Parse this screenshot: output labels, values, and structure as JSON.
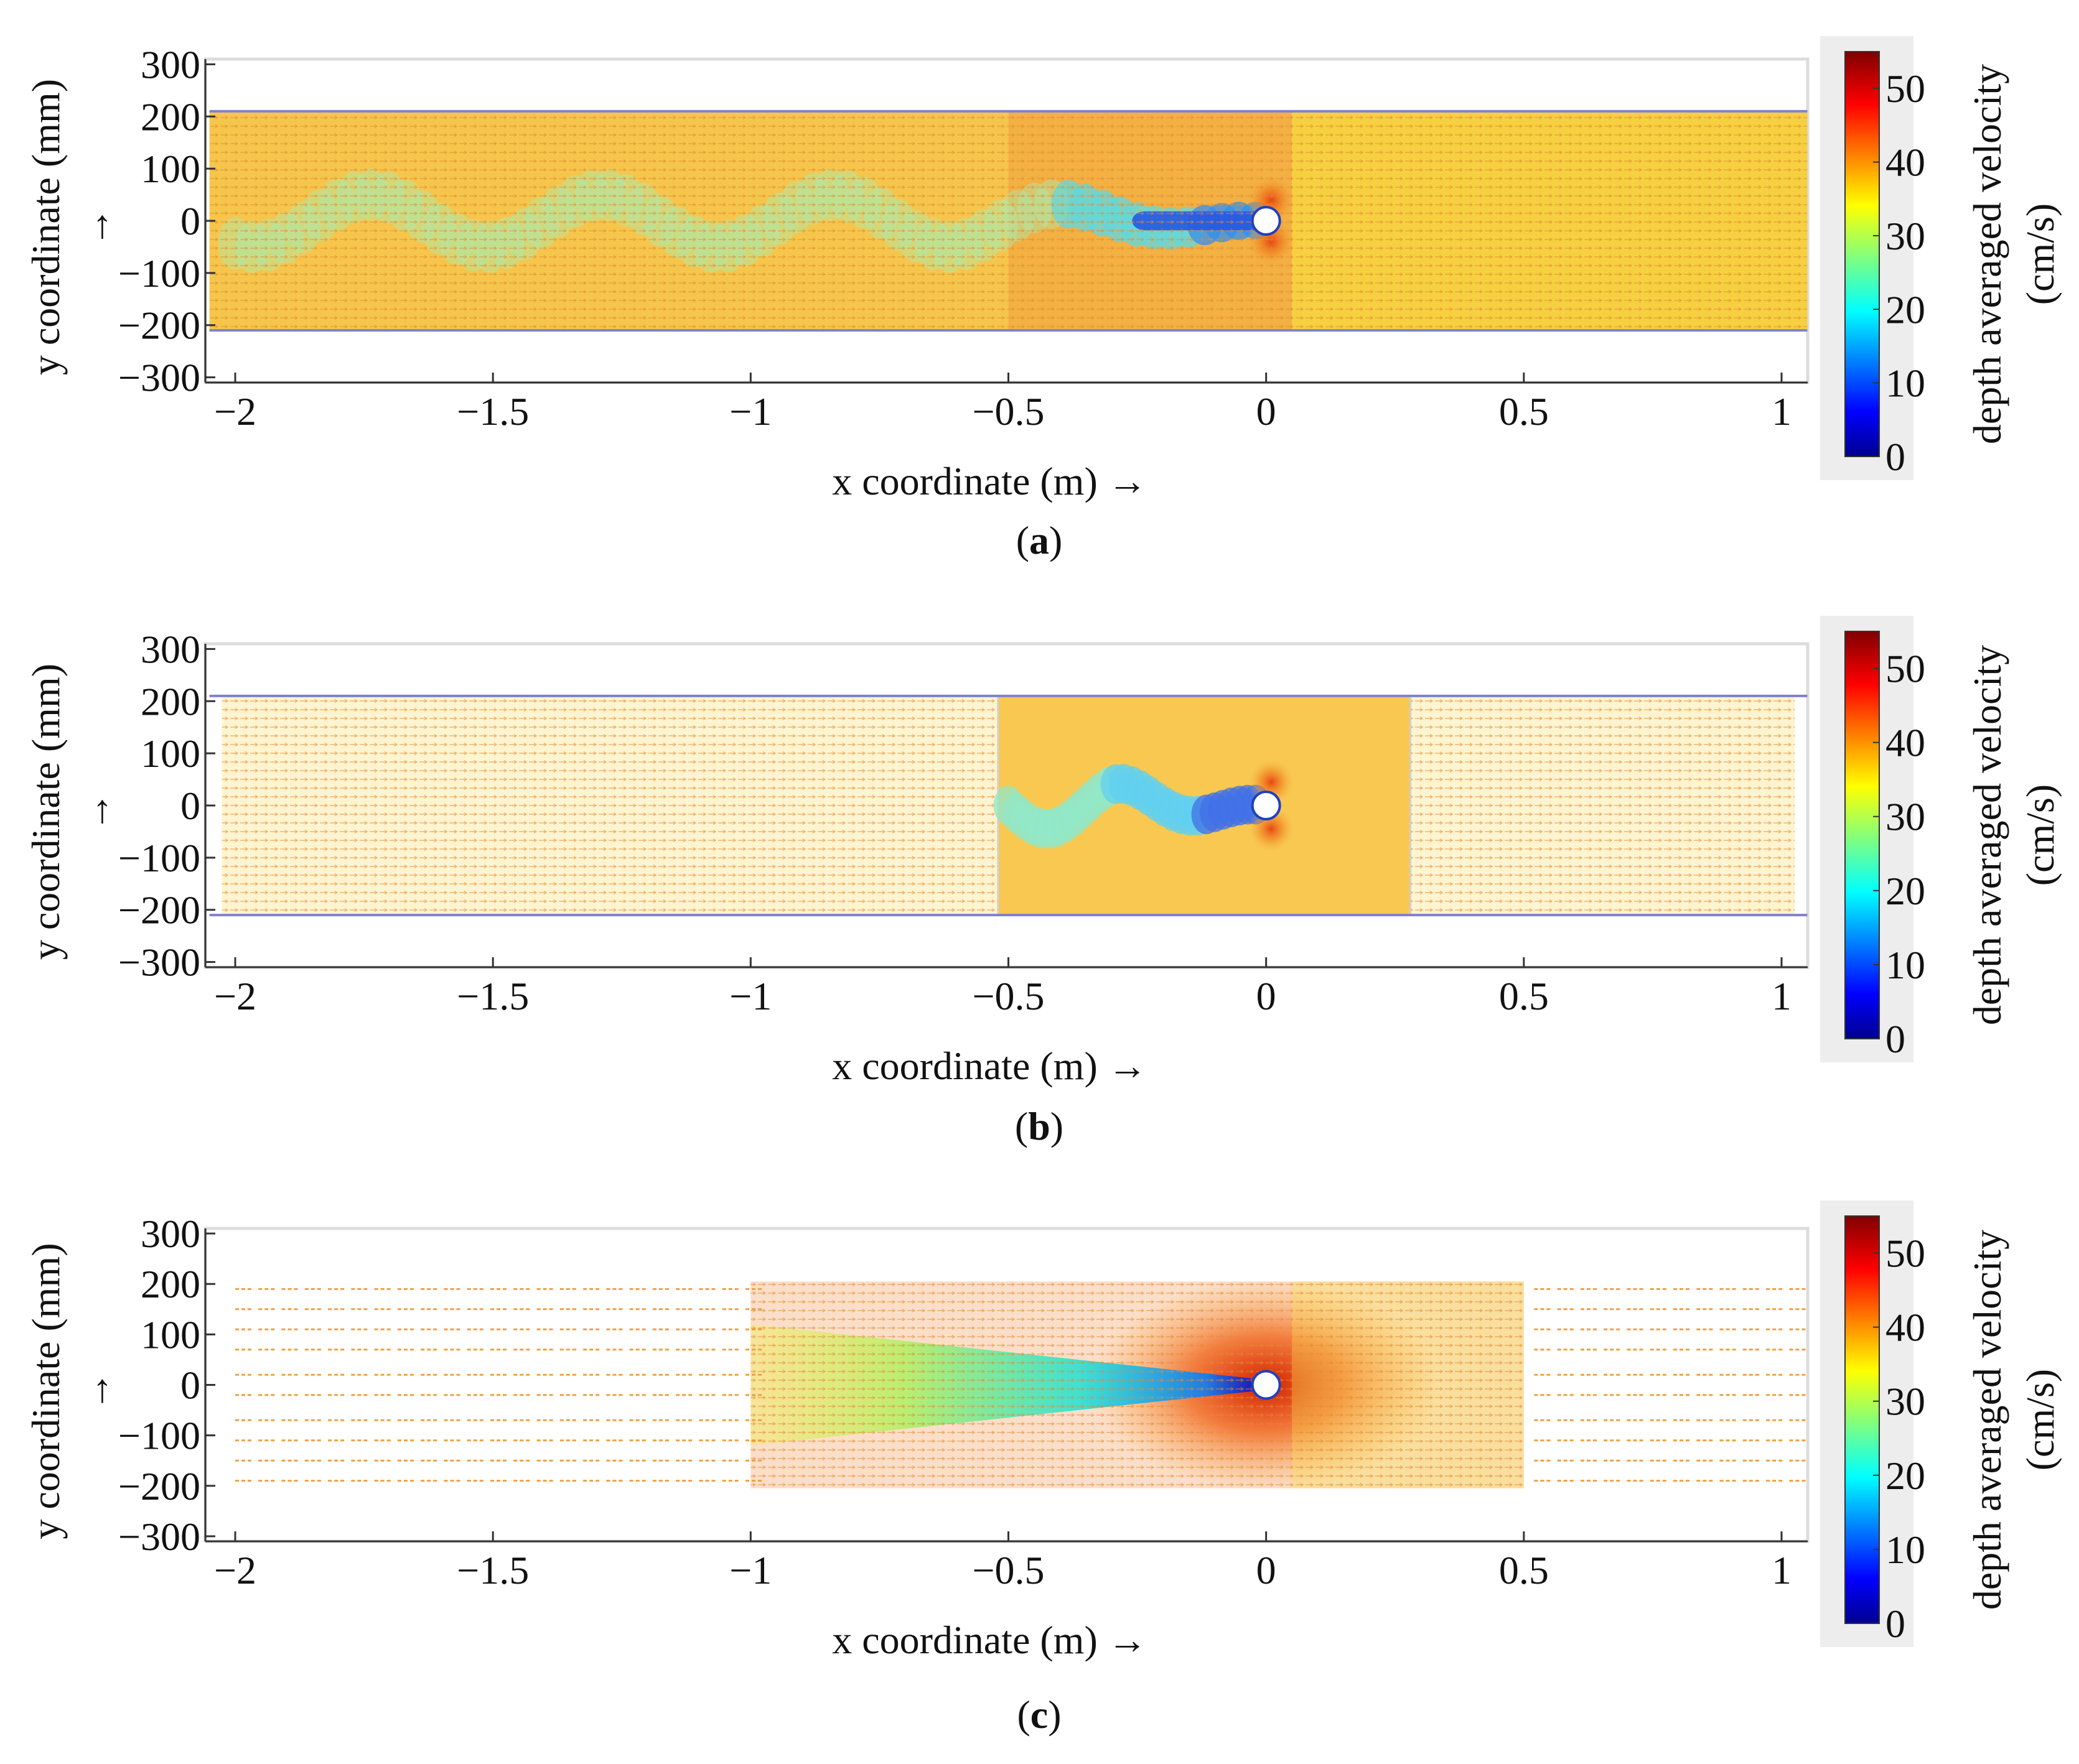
{
  "figure": {
    "panels": [
      {
        "id": "a",
        "label_open": "(",
        "label_letter": "a",
        "label_close": ")",
        "xlabel": "x coordinate  (m) →",
        "ylabel": "y coordinate  (mm)",
        "yarrow": "→",
        "colorbar_label_line1": "depth averaged  velocity",
        "colorbar_label_line2": "(cm/s)"
      },
      {
        "id": "b",
        "label_open": "(",
        "label_letter": "b",
        "label_close": ")",
        "xlabel": "x coordinate  (m) →",
        "ylabel": "y coordinate  (mm)",
        "yarrow": "→",
        "colorbar_label_line1": "depth averaged  velocity",
        "colorbar_label_line2": "(cm/s)"
      },
      {
        "id": "c",
        "label_open": "(",
        "label_letter": "c",
        "label_close": ")",
        "xlabel": "x coordinate  (m) →",
        "ylabel": "y coordinate  (mm)",
        "yarrow": "→",
        "colorbar_label_line1": "depth averaged  velocity",
        "colorbar_label_line2": "(cm/s)"
      }
    ]
  },
  "chart_data": [
    {
      "type": "heatmap",
      "panel": "a",
      "description_kind": "depth averaged velocity field around a cylinder (vector plot with colormap)",
      "xlim": [
        -2.05,
        1.05
      ],
      "ylim": [
        -310,
        310
      ],
      "xticks": [
        -2,
        -1.5,
        -1,
        -0.5,
        0,
        0.5,
        1
      ],
      "xtick_labels": [
        "−2",
        "−1.5",
        "−1",
        "−0.5",
        "0",
        "0.5",
        "1"
      ],
      "yticks": [
        300,
        200,
        100,
        0,
        -100,
        -200,
        -300
      ],
      "ytick_labels": [
        "300",
        "200",
        "100",
        "0",
        "−100",
        "−200",
        "−300"
      ],
      "channel_walls_y": [
        -210,
        210
      ],
      "cylinder": {
        "x": 0,
        "y": 0
      },
      "colorbar": {
        "min": 0,
        "max": 55,
        "colormap": "jet",
        "ticks": [
          0,
          10,
          20,
          30,
          40,
          50
        ],
        "tick_labels": [
          "0",
          "10",
          "20",
          "30",
          "40",
          "50"
        ]
      },
      "grid": false
    },
    {
      "type": "heatmap",
      "panel": "b",
      "description_kind": "depth averaged velocity field around a cylinder (vector plot with colormap)",
      "xlim": [
        -2.05,
        1.05
      ],
      "ylim": [
        -310,
        310
      ],
      "xticks": [
        -2,
        -1.5,
        -1,
        -0.5,
        0,
        0.5,
        1
      ],
      "xtick_labels": [
        "−2",
        "−1.5",
        "−1",
        "−0.5",
        "0",
        "0.5",
        "1"
      ],
      "yticks": [
        300,
        200,
        100,
        0,
        -100,
        -200,
        -300
      ],
      "ytick_labels": [
        "300",
        "200",
        "100",
        "0",
        "−100",
        "−200",
        "−300"
      ],
      "channel_walls_y": [
        -210,
        210
      ],
      "refined_region_x": [
        -0.52,
        0.28
      ],
      "cylinder": {
        "x": 0,
        "y": 0
      },
      "colorbar": {
        "min": 0,
        "max": 55,
        "colormap": "jet",
        "ticks": [
          0,
          10,
          20,
          30,
          40,
          50
        ],
        "tick_labels": [
          "0",
          "10",
          "20",
          "30",
          "40",
          "50"
        ]
      },
      "grid": false
    },
    {
      "type": "heatmap",
      "panel": "c",
      "description_kind": "depth averaged velocity field around a cylinder (vector plot with colormap)",
      "xlim": [
        -2.05,
        1.05
      ],
      "ylim": [
        -310,
        310
      ],
      "xticks": [
        -2,
        -1.5,
        -1,
        -0.5,
        0,
        0.5,
        1
      ],
      "xtick_labels": [
        "−2",
        "−1.5",
        "−1",
        "−0.5",
        "0",
        "0.5",
        "1"
      ],
      "yticks": [
        300,
        200,
        100,
        0,
        -100,
        -200,
        -300
      ],
      "ytick_labels": [
        "300",
        "200",
        "100",
        "0",
        "−100",
        "−200",
        "−300"
      ],
      "refined_region_x": [
        -1,
        0.5
      ],
      "arrow_rows_y": [
        190,
        150,
        110,
        70,
        20,
        -20,
        -70,
        -110,
        -150,
        -190
      ],
      "cylinder": {
        "x": 0,
        "y": 0
      },
      "colorbar": {
        "min": 0,
        "max": 55,
        "colormap": "jet",
        "ticks": [
          0,
          10,
          20,
          30,
          40,
          50
        ],
        "tick_labels": [
          "0",
          "10",
          "20",
          "30",
          "40",
          "50"
        ]
      },
      "grid": false
    }
  ]
}
